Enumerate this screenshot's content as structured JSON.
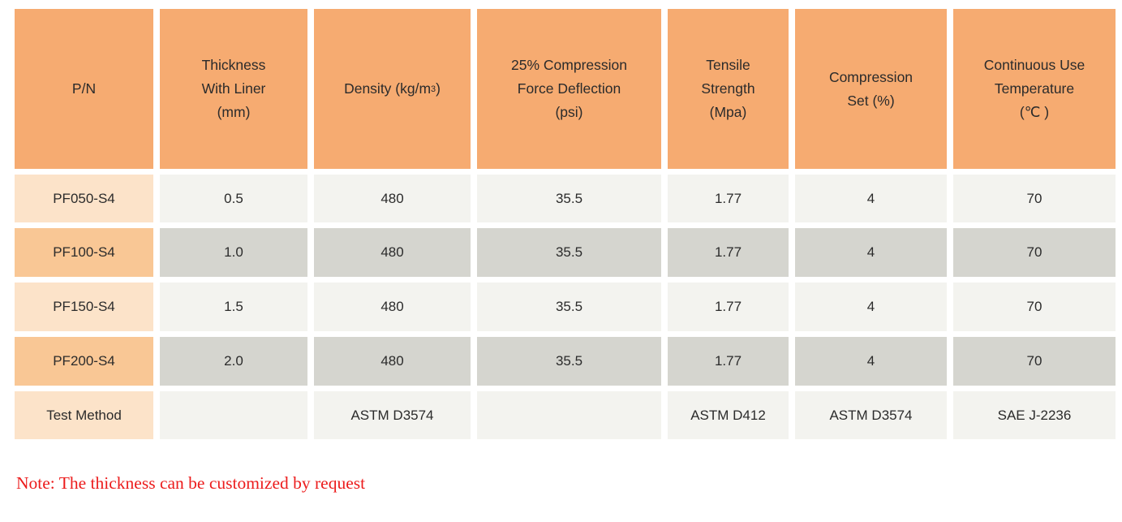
{
  "colors": {
    "header-bg": "#F6AB71",
    "pn-light": "#FCE3C9",
    "pn-dark": "#F9C795",
    "cell-light": "#F3F3EF",
    "cell-dark": "#D5D5CF",
    "note-red": "#EC1C1C"
  },
  "table": {
    "header": {
      "pn": [
        "P/N"
      ],
      "thickness": [
        "Thickness",
        "With Liner",
        "(mm)"
      ],
      "density": {
        "prefix": "Density (kg/m",
        "sup": "3",
        "suffix": " )"
      },
      "cfd": [
        "25% Compression",
        "Force Deflection",
        "(psi)"
      ],
      "tensile": [
        "Tensile",
        "Strength",
        "(Mpa)"
      ],
      "compression_set": [
        "Compression",
        "Set (%)"
      ],
      "continuous_use_temp": [
        "Continuous Use",
        "Temperature",
        "(℃ )"
      ]
    },
    "rows": [
      {
        "cells": [
          "PF050-S4",
          "0.5",
          "480",
          "35.5",
          "1.77",
          "4",
          "70"
        ]
      },
      {
        "cells": [
          "PF100-S4",
          "1.0",
          "480",
          "35.5",
          "1.77",
          "4",
          "70"
        ]
      },
      {
        "cells": [
          "PF150-S4",
          "1.5",
          "480",
          "35.5",
          "1.77",
          "4",
          "70"
        ]
      },
      {
        "cells": [
          "PF200-S4",
          "2.0",
          "480",
          "35.5",
          "1.77",
          "4",
          "70"
        ]
      },
      {
        "cells": [
          "Test Method",
          "",
          "ASTM D3574",
          "",
          "ASTM D412",
          "ASTM D3574",
          "SAE J-2236"
        ]
      }
    ]
  },
  "note": "Note: The thickness can be customized by request"
}
